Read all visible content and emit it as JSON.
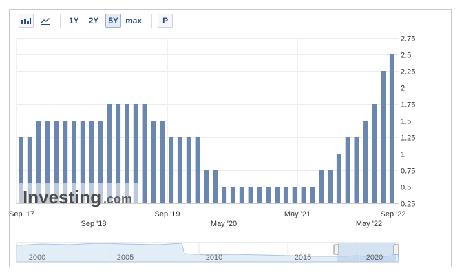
{
  "toolbar": {
    "bar_chart_icon": "bar-chart-icon",
    "line_chart_icon": "line-chart-icon",
    "ranges": [
      "1Y",
      "2Y",
      "5Y",
      "max"
    ],
    "active_range": "5Y",
    "p_label": "P"
  },
  "watermark": {
    "brand": "Investing",
    "suffix": ".com"
  },
  "chart_data": {
    "type": "bar",
    "title": "",
    "xlabel": "",
    "ylabel": "",
    "ylim": [
      0.25,
      2.75
    ],
    "yticks": [
      0.25,
      0.5,
      0.75,
      1,
      1.25,
      1.5,
      1.75,
      2,
      2.25,
      2.5,
      2.75
    ],
    "ytick_labels": [
      "0.25",
      "0.5",
      "0.75",
      "1",
      "1.25",
      "1.5",
      "1.75",
      "2",
      "2.25",
      "2.5",
      "2.75"
    ],
    "x_tick_labels_row1": [
      "Sep '17",
      "Sep '19",
      "May '21",
      "Sep '22"
    ],
    "x_tick_labels_row2": [
      "Sep '18",
      "May '20",
      "May '22"
    ],
    "values": [
      1.25,
      1.25,
      1.5,
      1.5,
      1.5,
      1.5,
      1.5,
      1.5,
      1.5,
      1.5,
      1.75,
      1.75,
      1.75,
      1.75,
      1.75,
      1.5,
      1.5,
      1.25,
      1.25,
      1.25,
      1.25,
      0.75,
      0.75,
      0.5,
      0.5,
      0.5,
      0.5,
      0.5,
      0.5,
      0.5,
      0.5,
      0.5,
      0.5,
      0.5,
      0.75,
      0.75,
      1,
      1.25,
      1.25,
      1.5,
      1.75,
      2.25,
      2.5
    ],
    "bar_color": "#6a87b0",
    "grid": true,
    "legend": "none"
  },
  "navigator": {
    "tick_labels": [
      "2000",
      "2005",
      "2010",
      "2015",
      "2020"
    ],
    "line_color": "#a9c3de",
    "selection_color": "#b3cbe5"
  }
}
